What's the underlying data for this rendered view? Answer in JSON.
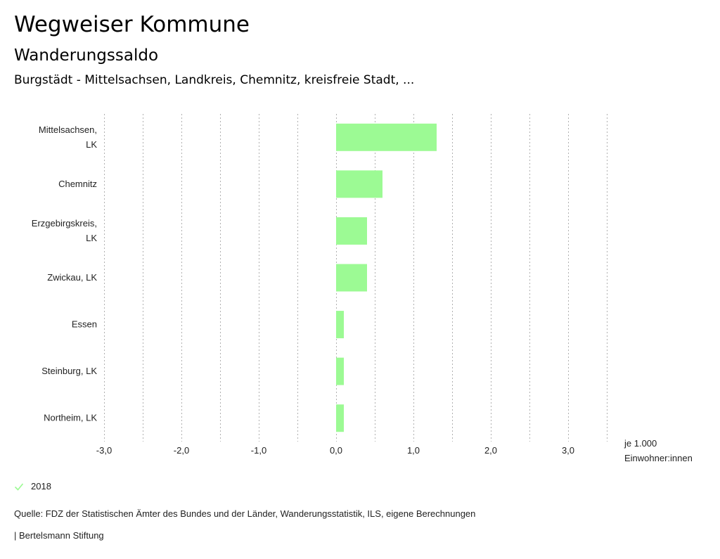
{
  "header": {
    "title": "Wegweiser Kommune",
    "subtitle": "Wanderungssaldo",
    "region": "Burgstädt - Mittelsachsen, Landkreis, Chemnitz, kreisfreie Stadt, ..."
  },
  "chart_data": {
    "type": "bar",
    "orientation": "horizontal",
    "title": "Wanderungssaldo",
    "xlabel": "je 1.000 Einwohner:innen",
    "xlabel_lines": [
      "je 1.000",
      "Einwohner:innen"
    ],
    "ylabel": "",
    "categories": [
      [
        "Mittelsachsen,",
        "LK"
      ],
      [
        "Chemnitz"
      ],
      [
        "Erzgebirgskreis,",
        "LK"
      ],
      [
        "Zwickau, LK"
      ],
      [
        "Essen"
      ],
      [
        "Steinburg, LK"
      ],
      [
        "Northeim, LK"
      ]
    ],
    "series": [
      {
        "name": "2018",
        "color": "#9cfa94",
        "values": [
          1.3,
          0.6,
          0.4,
          0.4,
          0.1,
          0.1,
          0.1
        ]
      }
    ],
    "xlim": [
      -3.0,
      3.5
    ],
    "xticks": [
      -3.0,
      -2.0,
      -1.0,
      0.0,
      1.0,
      2.0,
      3.0
    ],
    "xtick_labels": [
      "-3,0",
      "-2,0",
      "-1,0",
      "0,0",
      "1,0",
      "2,0",
      "3,0"
    ],
    "gridlines": [
      -3.0,
      -2.5,
      -2.0,
      -1.5,
      -1.0,
      -0.5,
      0.0,
      0.5,
      1.0,
      1.5,
      2.0,
      2.5,
      3.0,
      3.5
    ],
    "grid": true,
    "grid_style": "dotted",
    "legend_position": "bottom-left"
  },
  "legend": {
    "items": [
      {
        "label": "2018",
        "icon": "check-icon",
        "color": "#9cfa94"
      }
    ]
  },
  "footer": {
    "source": "Quelle: FDZ der Statistischen Ämter des Bundes und der Länder, Wanderungsstatistik, ILS, eigene Berechnungen",
    "credit": "| Bertelsmann Stiftung"
  }
}
